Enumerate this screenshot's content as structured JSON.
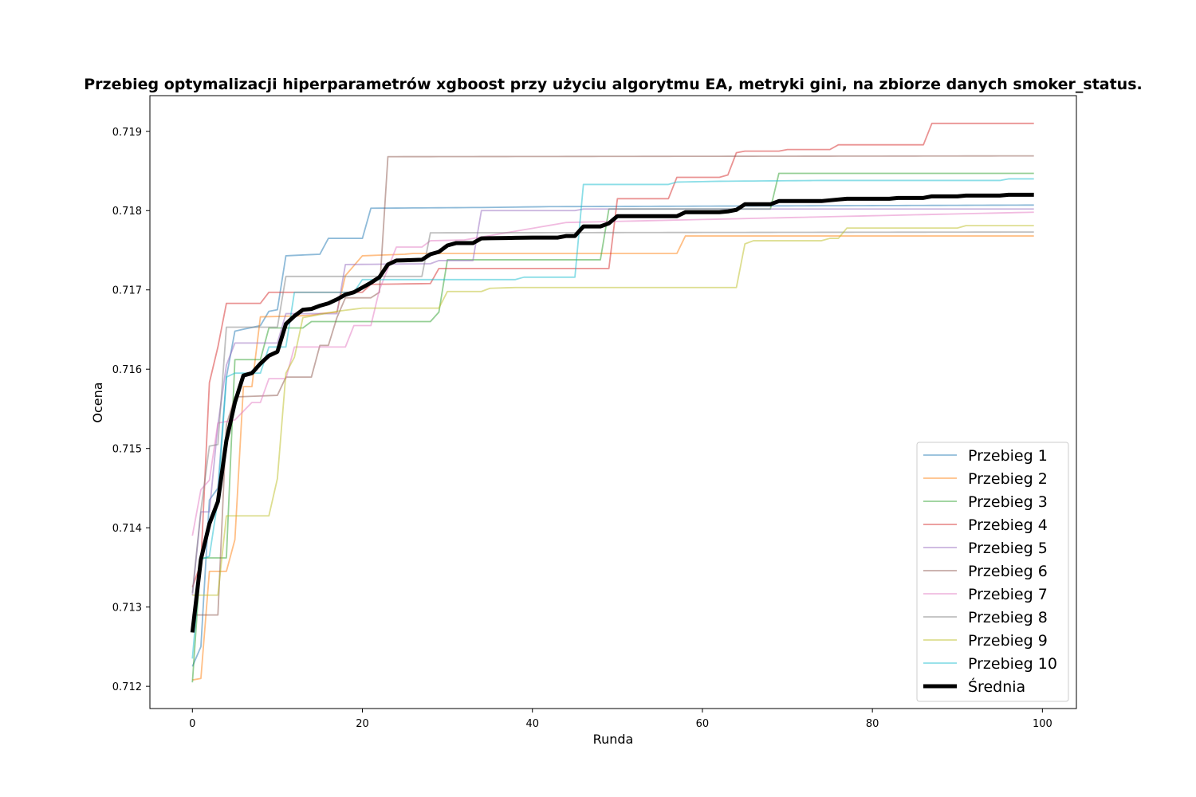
{
  "chart_data": {
    "type": "line",
    "title": "Przebieg optymalizacji hiperparametrów xgboost przy użyciu algorytmu EA, metryki gini, na zbiorze danych smoker_status.",
    "xlabel": "Runda",
    "ylabel": "Ocena",
    "xlim": [
      -5,
      104
    ],
    "ylim": [
      0.71172,
      0.71945
    ],
    "xticks": [
      0,
      20,
      40,
      60,
      80,
      100
    ],
    "xtick_labels": [
      "0",
      "20",
      "40",
      "60",
      "80",
      "100"
    ],
    "yticks": [
      0.712,
      0.713,
      0.714,
      0.715,
      0.716,
      0.717,
      0.718,
      0.719
    ],
    "ytick_labels": [
      "0.712",
      "0.713",
      "0.714",
      "0.715",
      "0.716",
      "0.717",
      "0.718",
      "0.719"
    ],
    "grid": false,
    "legend_position": "lower-right",
    "series": [
      {
        "name": "Przebieg 1",
        "color": "#1f77b4",
        "steps": [
          [
            0,
            0.71225
          ],
          [
            1,
            0.7125
          ],
          [
            2,
            0.71435
          ],
          [
            3,
            0.7145
          ],
          [
            4,
            0.7159
          ],
          [
            5,
            0.71648
          ],
          [
            8,
            0.71655
          ],
          [
            9,
            0.71673
          ],
          [
            10,
            0.71675
          ],
          [
            11,
            0.71743
          ],
          [
            15,
            0.71745
          ],
          [
            16,
            0.71765
          ],
          [
            20,
            0.71765
          ],
          [
            21,
            0.71803
          ],
          [
            35,
            0.71804
          ],
          [
            42,
            0.71805
          ],
          [
            99,
            0.71807
          ]
        ]
      },
      {
        "name": "Przebieg 2",
        "color": "#ff7f0e",
        "steps": [
          [
            0,
            0.71208
          ],
          [
            1,
            0.7121
          ],
          [
            2,
            0.71345
          ],
          [
            4,
            0.71345
          ],
          [
            5,
            0.71385
          ],
          [
            6,
            0.71578
          ],
          [
            7,
            0.71578
          ],
          [
            8,
            0.71666
          ],
          [
            12,
            0.71667
          ],
          [
            14,
            0.71668
          ],
          [
            15,
            0.7167
          ],
          [
            17,
            0.71672
          ],
          [
            18,
            0.71718
          ],
          [
            20,
            0.71743
          ],
          [
            25,
            0.71745
          ],
          [
            26,
            0.71746
          ],
          [
            57,
            0.71746
          ],
          [
            58,
            0.71768
          ],
          [
            99,
            0.71768
          ]
        ]
      },
      {
        "name": "Przebieg 3",
        "color": "#2ca02c",
        "steps": [
          [
            0,
            0.71205
          ],
          [
            1,
            0.71362
          ],
          [
            4,
            0.71362
          ],
          [
            5,
            0.71612
          ],
          [
            8,
            0.71612
          ],
          [
            9,
            0.71652
          ],
          [
            13,
            0.71652
          ],
          [
            14,
            0.7166
          ],
          [
            28,
            0.7166
          ],
          [
            29,
            0.71672
          ],
          [
            30,
            0.71738
          ],
          [
            48,
            0.71738
          ],
          [
            49,
            0.71802
          ],
          [
            68,
            0.71802
          ],
          [
            69,
            0.71847
          ],
          [
            99,
            0.71847
          ]
        ]
      },
      {
        "name": "Przebieg 4",
        "color": "#d62728",
        "steps": [
          [
            0,
            0.71325
          ],
          [
            1,
            0.71355
          ],
          [
            2,
            0.71583
          ],
          [
            3,
            0.71628
          ],
          [
            4,
            0.71683
          ],
          [
            8,
            0.71683
          ],
          [
            9,
            0.71697
          ],
          [
            20,
            0.71697
          ],
          [
            21,
            0.71707
          ],
          [
            28,
            0.71708
          ],
          [
            29,
            0.71727
          ],
          [
            49,
            0.71727
          ],
          [
            50,
            0.71815
          ],
          [
            56,
            0.71815
          ],
          [
            57,
            0.71842
          ],
          [
            62,
            0.71842
          ],
          [
            63,
            0.71845
          ],
          [
            64,
            0.71873
          ],
          [
            65,
            0.71875
          ],
          [
            69,
            0.71875
          ],
          [
            70,
            0.71877
          ],
          [
            75,
            0.71877
          ],
          [
            76,
            0.71883
          ],
          [
            86,
            0.71883
          ],
          [
            87,
            0.7191
          ],
          [
            99,
            0.7191
          ]
        ]
      },
      {
        "name": "Przebieg 5",
        "color": "#9467bd",
        "steps": [
          [
            0,
            0.71315
          ],
          [
            1,
            0.7142
          ],
          [
            2,
            0.7142
          ],
          [
            3,
            0.7153
          ],
          [
            4,
            0.71605
          ],
          [
            5,
            0.71633
          ],
          [
            10,
            0.71633
          ],
          [
            11,
            0.7167
          ],
          [
            17,
            0.7167
          ],
          [
            18,
            0.71732
          ],
          [
            28,
            0.71733
          ],
          [
            29,
            0.71737
          ],
          [
            33,
            0.71737
          ],
          [
            34,
            0.718
          ],
          [
            45,
            0.718
          ],
          [
            46,
            0.71802
          ],
          [
            99,
            0.71802
          ]
        ]
      },
      {
        "name": "Przebieg 6",
        "color": "#8c564b",
        "steps": [
          [
            0,
            0.7129
          ],
          [
            3,
            0.7129
          ],
          [
            4,
            0.7153
          ],
          [
            5,
            0.71565
          ],
          [
            10,
            0.71567
          ],
          [
            11,
            0.7159
          ],
          [
            14,
            0.7159
          ],
          [
            15,
            0.7163
          ],
          [
            16,
            0.7163
          ],
          [
            17,
            0.71665
          ],
          [
            18,
            0.7169
          ],
          [
            21,
            0.7169
          ],
          [
            22,
            0.71697
          ],
          [
            23,
            0.71868
          ],
          [
            99,
            0.71869
          ]
        ]
      },
      {
        "name": "Przebieg 7",
        "color": "#e377c2",
        "steps": [
          [
            0,
            0.7139
          ],
          [
            1,
            0.71448
          ],
          [
            2,
            0.7146
          ],
          [
            3,
            0.71532
          ],
          [
            5,
            0.71536
          ],
          [
            7,
            0.71558
          ],
          [
            8,
            0.71558
          ],
          [
            9,
            0.71588
          ],
          [
            11,
            0.71588
          ],
          [
            12,
            0.71628
          ],
          [
            18,
            0.71628
          ],
          [
            19,
            0.71655
          ],
          [
            21,
            0.71655
          ],
          [
            22,
            0.717
          ],
          [
            24,
            0.71754
          ],
          [
            27,
            0.71754
          ],
          [
            28,
            0.71762
          ],
          [
            32,
            0.71763
          ],
          [
            44,
            0.71785
          ],
          [
            99,
            0.71798
          ]
        ]
      },
      {
        "name": "Przebieg 8",
        "color": "#7f7f7f",
        "steps": [
          [
            0,
            0.71318
          ],
          [
            1,
            0.71422
          ],
          [
            2,
            0.71503
          ],
          [
            3,
            0.71505
          ],
          [
            4,
            0.71653
          ],
          [
            10,
            0.71653
          ],
          [
            11,
            0.71717
          ],
          [
            27,
            0.71717
          ],
          [
            28,
            0.71772
          ],
          [
            99,
            0.71773
          ]
        ]
      },
      {
        "name": "Przebieg 9",
        "color": "#bcbd22",
        "steps": [
          [
            0,
            0.71315
          ],
          [
            1,
            0.71315
          ],
          [
            2,
            0.71315
          ],
          [
            3,
            0.71315
          ],
          [
            4,
            0.71415
          ],
          [
            9,
            0.71415
          ],
          [
            10,
            0.71462
          ],
          [
            11,
            0.71595
          ],
          [
            12,
            0.71615
          ],
          [
            13,
            0.71665
          ],
          [
            17,
            0.71673
          ],
          [
            20,
            0.71677
          ],
          [
            29,
            0.71677
          ],
          [
            30,
            0.71698
          ],
          [
            34,
            0.71698
          ],
          [
            35,
            0.71702
          ],
          [
            38,
            0.71703
          ],
          [
            64,
            0.71703
          ],
          [
            65,
            0.71758
          ],
          [
            66,
            0.71762
          ],
          [
            74,
            0.71762
          ],
          [
            75,
            0.71765
          ],
          [
            76,
            0.71765
          ],
          [
            77,
            0.71778
          ],
          [
            90,
            0.71778
          ],
          [
            91,
            0.71781
          ],
          [
            99,
            0.71781
          ]
        ]
      },
      {
        "name": "Przebieg 10",
        "color": "#17becf",
        "steps": [
          [
            0,
            0.71235
          ],
          [
            1,
            0.7136
          ],
          [
            2,
            0.71364
          ],
          [
            3,
            0.71435
          ],
          [
            4,
            0.7159
          ],
          [
            5,
            0.71595
          ],
          [
            8,
            0.71595
          ],
          [
            9,
            0.71628
          ],
          [
            11,
            0.71628
          ],
          [
            12,
            0.71697
          ],
          [
            19,
            0.71697
          ],
          [
            20,
            0.71713
          ],
          [
            38,
            0.71713
          ],
          [
            39,
            0.71716
          ],
          [
            45,
            0.71716
          ],
          [
            46,
            0.71833
          ],
          [
            56,
            0.71833
          ],
          [
            57,
            0.71836
          ],
          [
            62,
            0.71837
          ],
          [
            74,
            0.71838
          ],
          [
            95,
            0.71838
          ],
          [
            96,
            0.7184
          ],
          [
            99,
            0.7184
          ]
        ]
      },
      {
        "name": "Średnia",
        "color": "#000000",
        "bold": true,
        "steps": [
          [
            0,
            0.71268
          ],
          [
            1,
            0.7136
          ],
          [
            2,
            0.71405
          ],
          [
            3,
            0.71433
          ],
          [
            4,
            0.7151
          ],
          [
            5,
            0.71558
          ],
          [
            6,
            0.71592
          ],
          [
            7,
            0.71595
          ],
          [
            8,
            0.71607
          ],
          [
            9,
            0.71617
          ],
          [
            10,
            0.71622
          ],
          [
            11,
            0.71657
          ],
          [
            12,
            0.71667
          ],
          [
            13,
            0.71675
          ],
          [
            14,
            0.71676
          ],
          [
            15,
            0.7168
          ],
          [
            16,
            0.71683
          ],
          [
            17,
            0.71688
          ],
          [
            18,
            0.71694
          ],
          [
            19,
            0.71697
          ],
          [
            20,
            0.71703
          ],
          [
            21,
            0.71709
          ],
          [
            22,
            0.71716
          ],
          [
            23,
            0.71732
          ],
          [
            24,
            0.71737
          ],
          [
            27,
            0.71738
          ],
          [
            28,
            0.71745
          ],
          [
            29,
            0.71748
          ],
          [
            30,
            0.71756
          ],
          [
            31,
            0.71759
          ],
          [
            33,
            0.71759
          ],
          [
            34,
            0.71765
          ],
          [
            40,
            0.71766
          ],
          [
            43,
            0.71766
          ],
          [
            44,
            0.71768
          ],
          [
            45,
            0.71768
          ],
          [
            46,
            0.7178
          ],
          [
            48,
            0.7178
          ],
          [
            49,
            0.71784
          ],
          [
            50,
            0.71793
          ],
          [
            57,
            0.71793
          ],
          [
            58,
            0.71798
          ],
          [
            62,
            0.71798
          ],
          [
            63,
            0.71799
          ],
          [
            64,
            0.71801
          ],
          [
            65,
            0.71808
          ],
          [
            68,
            0.71808
          ],
          [
            69,
            0.71812
          ],
          [
            74,
            0.71812
          ],
          [
            77,
            0.71815
          ],
          [
            82,
            0.71815
          ],
          [
            83,
            0.71816
          ],
          [
            86,
            0.71816
          ],
          [
            87,
            0.71818
          ],
          [
            90,
            0.71818
          ],
          [
            91,
            0.71819
          ],
          [
            95,
            0.71819
          ],
          [
            96,
            0.7182
          ],
          [
            99,
            0.7182
          ]
        ]
      }
    ]
  }
}
